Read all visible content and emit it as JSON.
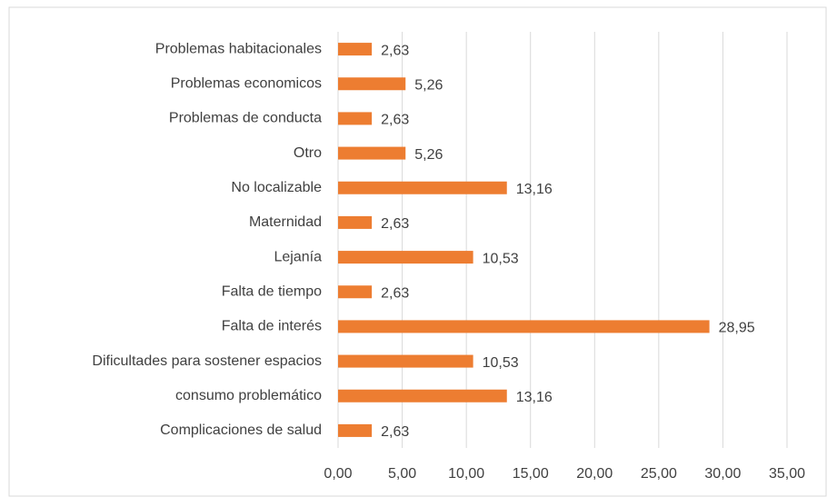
{
  "chart_data": {
    "type": "bar",
    "orientation": "horizontal",
    "categories": [
      "Problemas habitacionales",
      "Problemas economicos",
      "Problemas de conducta",
      "Otro",
      "No localizable",
      "Maternidad",
      "Lejanía",
      "Falta de tiempo",
      "Falta de interés",
      "Dificultades para sostener espacios",
      "consumo problemático",
      "Complicaciones de salud"
    ],
    "values": [
      2.63,
      5.26,
      2.63,
      5.26,
      13.16,
      2.63,
      10.53,
      2.63,
      28.95,
      10.53,
      13.16,
      2.63
    ],
    "value_labels": [
      "2,63",
      "5,26",
      "2,63",
      "5,26",
      "13,16",
      "2,63",
      "10,53",
      "2,63",
      "28,95",
      "10,53",
      "13,16",
      "2,63"
    ],
    "color": "#ed7d31",
    "xlim": [
      0,
      35
    ],
    "xticks": [
      {
        "value": 0,
        "label": "0,00"
      },
      {
        "value": 5,
        "label": "5,00"
      },
      {
        "value": 10,
        "label": "10,00"
      },
      {
        "value": 15,
        "label": "15,00"
      },
      {
        "value": 20,
        "label": "20,00"
      },
      {
        "value": 25,
        "label": "25,00"
      },
      {
        "value": 30,
        "label": "30,00"
      },
      {
        "value": 35,
        "label": "35,00"
      }
    ],
    "grid": true
  }
}
